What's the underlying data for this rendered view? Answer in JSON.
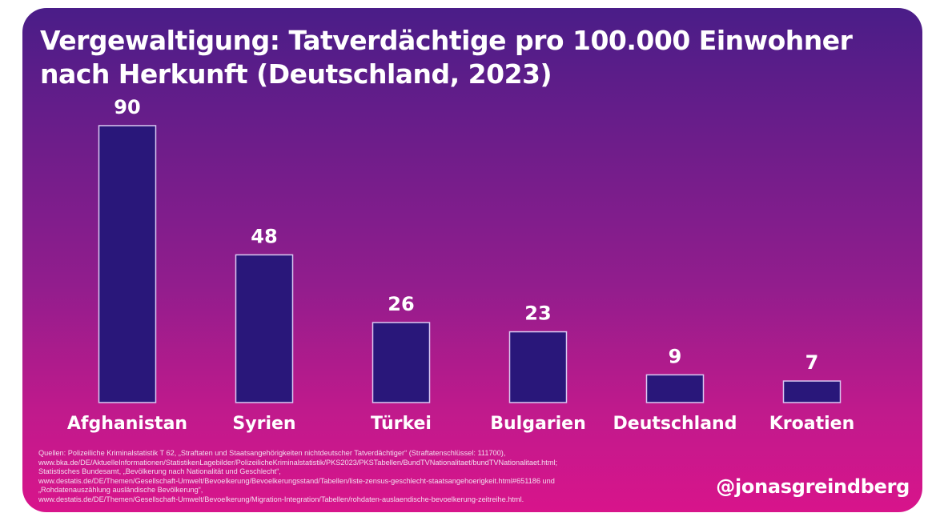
{
  "header": {
    "title_line1": "Vergewaltigung: Tatverdächtige pro 100.000 Einwohner",
    "title_line2": "nach Herkunft (Deutschland, 2023)"
  },
  "chart_data": {
    "type": "bar",
    "title": "Vergewaltigung: Tatverdächtige pro 100.000 Einwohner nach Herkunft (Deutschland, 2023)",
    "categories": [
      "Afghanistan",
      "Syrien",
      "Türkei",
      "Bulgarien",
      "Deutschland",
      "Kroatien"
    ],
    "values": [
      90,
      48,
      26,
      23,
      9,
      7
    ],
    "data_labels": [
      "90",
      "48",
      "26",
      "23",
      "9",
      "7"
    ],
    "ylim": [
      0,
      90
    ],
    "grid": false,
    "legend": "none",
    "colors": {
      "bar_fill": "#29177a",
      "bar_stroke": "#d9c8f2",
      "background_top": "#4a1d88",
      "background_bottom": "#d8148b"
    }
  },
  "sources": [
    "Quellen: Polizeiliche Kriminalstatistik T 62, „Straftaten und Staatsangehörigkeiten nichtdeutscher Tatverdächtiger“ (Straftatenschlüssel: 111700),",
    "www.bka.de/DE/AktuelleInformationen/StatistikenLagebilder/PolizeilicheKriminalstatistik/PKS2023/PKSTabellen/BundTVNationalitaet/bundTVNationalitaet.html;",
    "Statistisches Bundesamt, „Bevölkerung nach Nationalität und Geschlecht“,",
    "www.destatis.de/DE/Themen/Gesellschaft-Umwelt/Bevoelkerung/Bevoelkerungsstand/Tabellen/liste-zensus-geschlecht-staatsangehoerigkeit.html#651186 und",
    "„Rohdatenauszählung ausländische Bevölkerung“,",
    "www.destatis.de/DE/Themen/Gesellschaft-Umwelt/Bevoelkerung/Migration-Integration/Tabellen/rohdaten-auslaendische-bevoelkerung-zeitreihe.html."
  ],
  "handle": "@jonasgreindberg"
}
